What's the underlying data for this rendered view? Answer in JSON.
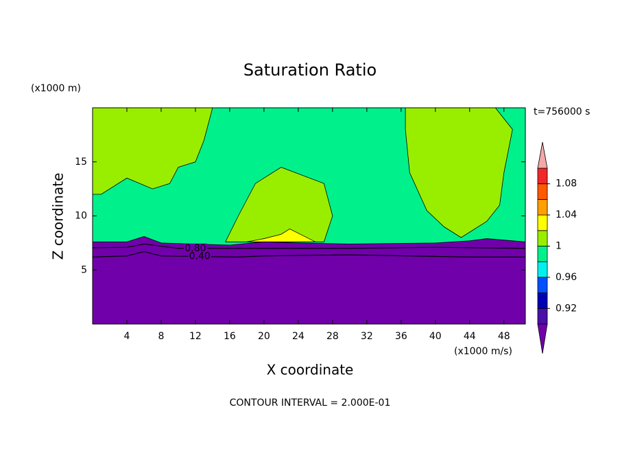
{
  "chart_data": {
    "type": "contour",
    "title": "Saturation Ratio",
    "x_label": "X coordinate",
    "y_label": "Z coordinate",
    "x_unit": "(x1000 m/s)",
    "y_unit": "(x1000 m)",
    "time_label": "t=756000 s",
    "footer": "CONTOUR INTERVAL = 2.000E-01",
    "xlim": [
      0,
      50.5
    ],
    "ylim": [
      0,
      20
    ],
    "xticks": [
      4,
      8,
      12,
      16,
      20,
      24,
      28,
      32,
      36,
      40,
      44,
      48
    ],
    "yticks": [
      5,
      10,
      15
    ],
    "colorbar": {
      "levels": [
        0.9,
        0.92,
        0.94,
        0.96,
        0.98,
        1,
        1.02,
        1.04,
        1.06,
        1.08,
        1.1
      ],
      "colors": [
        "#4a10a8",
        "#0000b4",
        "#0050ff",
        "#00f0f0",
        "#00f08c",
        "#99ee00",
        "#ffff00",
        "#ffa000",
        "#ff5a00",
        "#f02828"
      ],
      "under_color": "#7000aa",
      "over_color": "#f4a8a8",
      "ticks": [
        0.92,
        0.96,
        1,
        1.04,
        1.08
      ]
    },
    "regions": [
      {
        "value": 0.99,
        "x": [
          0,
          50.5,
          50.5,
          0
        ],
        "y": [
          20,
          20,
          0,
          0
        ]
      },
      {
        "value": 1.01,
        "x": [
          0,
          14,
          13,
          12,
          10,
          9,
          7,
          4,
          1,
          0
        ],
        "y": [
          20,
          20,
          17,
          15,
          14.5,
          13,
          12.5,
          13.5,
          12,
          12
        ]
      },
      {
        "value": 1.01,
        "x": [
          36.5,
          47,
          49,
          48,
          47.5,
          46,
          43,
          41,
          39,
          37,
          36.5
        ],
        "y": [
          20,
          20,
          18,
          14,
          11,
          9.5,
          8,
          9,
          10.5,
          14,
          18
        ]
      },
      {
        "value": 1.01,
        "x": [
          15.5,
          27,
          28,
          27,
          22,
          19,
          17
        ],
        "y": [
          7.6,
          7.6,
          10,
          13,
          14.5,
          13,
          10
        ]
      },
      {
        "value": 1.03,
        "x": [
          18,
          20,
          22,
          23,
          24,
          26,
          18
        ],
        "y": [
          7.6,
          7.9,
          8.3,
          8.8,
          8.4,
          7.6,
          7.6
        ]
      },
      {
        "value": 0.5,
        "x": [
          0,
          4,
          6,
          8,
          16,
          20,
          24,
          30,
          40,
          44,
          46,
          50.5,
          50.5,
          0
        ],
        "y": [
          7.6,
          7.6,
          8.1,
          7.5,
          7.3,
          7.6,
          7.5,
          7.4,
          7.5,
          7.7,
          7.9,
          7.6,
          0,
          0
        ]
      }
    ],
    "contours": [
      {
        "label": "0.80",
        "x": [
          0,
          4,
          6,
          10,
          14,
          20,
          30,
          40,
          50.5
        ],
        "y": [
          7.05,
          7.1,
          7.4,
          7.0,
          7.0,
          7.0,
          7.0,
          7.1,
          7.0
        ]
      },
      {
        "label": "0.40",
        "x": [
          0,
          4,
          6,
          8,
          17,
          20,
          30,
          44,
          50.5
        ],
        "y": [
          6.2,
          6.3,
          6.7,
          6.3,
          6.2,
          6.3,
          6.4,
          6.2,
          6.2
        ]
      }
    ]
  }
}
